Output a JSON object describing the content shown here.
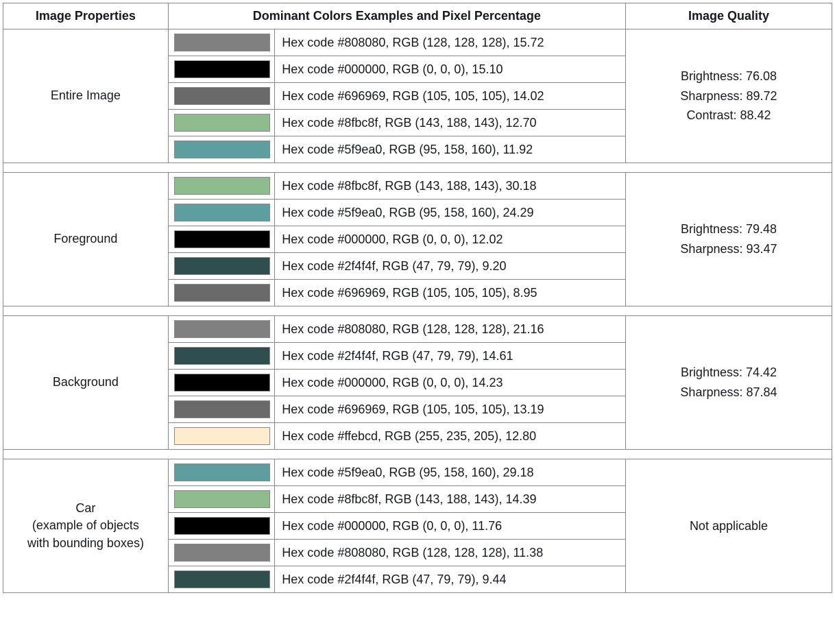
{
  "headers": {
    "prop": "Image Properties",
    "colors": "Dominant Colors Examples and Pixel Percentage",
    "quality": "Image Quality"
  },
  "groups": [
    {
      "label": "Entire Image",
      "quality": [
        "Brightness: 76.08",
        "Sharpness: 89.72",
        "Contrast: 88.42"
      ],
      "colors": [
        {
          "hex": "#808080",
          "desc": "Hex code #808080, RGB (128, 128, 128), 15.72"
        },
        {
          "hex": "#000000",
          "desc": "Hex code #000000, RGB (0, 0, 0), 15.10"
        },
        {
          "hex": "#696969",
          "desc": "Hex code #696969, RGB (105, 105, 105), 14.02"
        },
        {
          "hex": "#8fbc8f",
          "desc": "Hex code #8fbc8f, RGB (143, 188, 143), 12.70"
        },
        {
          "hex": "#5f9ea0",
          "desc": "Hex code #5f9ea0, RGB (95, 158, 160), 11.92"
        }
      ]
    },
    {
      "label": "Foreground",
      "quality": [
        "Brightness: 79.48",
        "Sharpness: 93.47"
      ],
      "colors": [
        {
          "hex": "#8fbc8f",
          "desc": "Hex code #8fbc8f, RGB (143, 188, 143), 30.18"
        },
        {
          "hex": "#5f9ea0",
          "desc": "Hex code #5f9ea0, RGB (95, 158, 160), 24.29"
        },
        {
          "hex": "#000000",
          "desc": "Hex code #000000, RGB (0, 0, 0), 12.02"
        },
        {
          "hex": "#2f4f4f",
          "desc": "Hex code #2f4f4f, RGB (47, 79, 79), 9.20"
        },
        {
          "hex": "#696969",
          "desc": "Hex code #696969, RGB (105, 105, 105), 8.95"
        }
      ]
    },
    {
      "label": "Background",
      "quality": [
        "Brightness: 74.42",
        "Sharpness: 87.84"
      ],
      "colors": [
        {
          "hex": "#808080",
          "desc": "Hex code #808080, RGB (128, 128, 128), 21.16"
        },
        {
          "hex": "#2f4f4f",
          "desc": "Hex code #2f4f4f, RGB (47, 79, 79), 14.61"
        },
        {
          "hex": "#000000",
          "desc": "Hex code #000000, RGB (0, 0, 0), 14.23"
        },
        {
          "hex": "#696969",
          "desc": "Hex code #696969, RGB (105, 105, 105), 13.19"
        },
        {
          "hex": "#ffebcd",
          "desc": "Hex code #ffebcd, RGB (255, 235, 205), 12.80"
        }
      ]
    },
    {
      "label": "Car\n(example of objects\nwith bounding boxes)",
      "quality": [
        "Not applicable"
      ],
      "colors": [
        {
          "hex": "#5f9ea0",
          "desc": "Hex code #5f9ea0, RGB (95, 158, 160), 29.18"
        },
        {
          "hex": "#8fbc8f",
          "desc": "Hex code #8fbc8f, RGB (143, 188, 143), 14.39"
        },
        {
          "hex": "#000000",
          "desc": "Hex code #000000, RGB (0, 0, 0), 11.76"
        },
        {
          "hex": "#808080",
          "desc": "Hex code #808080, RGB (128, 128, 128), 11.38"
        },
        {
          "hex": "#2f4f4f",
          "desc": "Hex code #2f4f4f, RGB (47, 79, 79), 9.44"
        }
      ]
    }
  ]
}
